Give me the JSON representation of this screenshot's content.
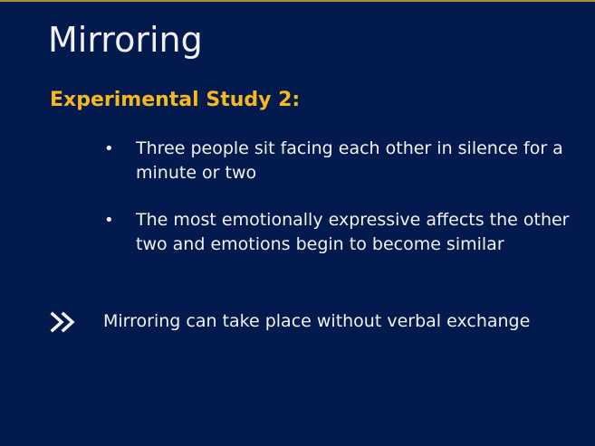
{
  "slide": {
    "title": "Mirroring",
    "subtitle": "Experimental Study 2:",
    "bullets": [
      {
        "icon": "bullet-dot-icon",
        "text": "Three people sit facing each other in silence for a minute or two"
      },
      {
        "icon": "bullet-dot-icon",
        "text": "The most emotionally expressive affects the other two and emotions begin to become similar"
      }
    ],
    "conclusion": {
      "icon": "double-chevron-right-icon",
      "text": "Mirroring can take place without verbal exchange"
    },
    "colors": {
      "background": "#021a4e",
      "title": "#f0f0f0",
      "subtitle": "#f6b81d",
      "body": "#f2f2f2",
      "top_rule": "#b38a2e"
    }
  }
}
